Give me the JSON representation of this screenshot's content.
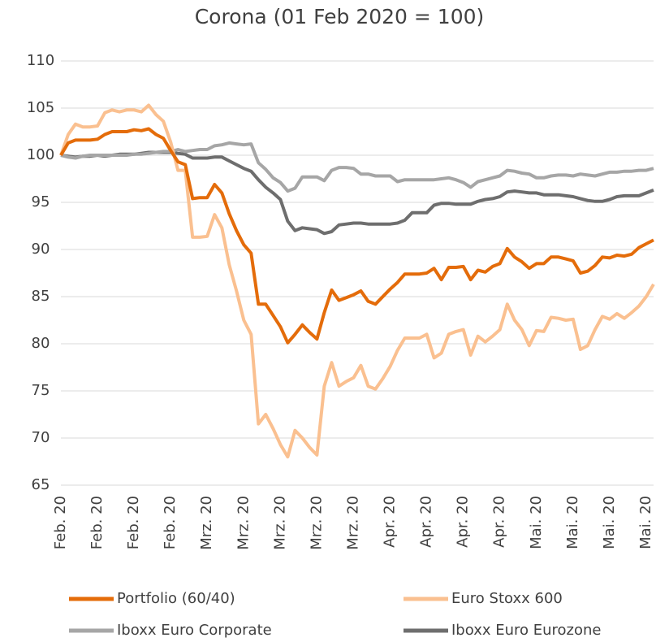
{
  "chart_data": {
    "type": "line",
    "title": "Corona (01 Feb 2020 = 100)",
    "categories": [
      "Feb. 20",
      null,
      null,
      null,
      null,
      "Feb. 20",
      null,
      null,
      null,
      null,
      "Feb. 20",
      null,
      null,
      null,
      null,
      "Feb. 20",
      null,
      null,
      null,
      null,
      "Mrz. 20",
      null,
      null,
      null,
      null,
      "Mrz. 20",
      null,
      null,
      null,
      null,
      "Mrz. 20",
      null,
      null,
      null,
      null,
      "Mrz. 20",
      null,
      null,
      null,
      null,
      "Mrz. 20",
      null,
      null,
      null,
      null,
      "Apr. 20",
      null,
      null,
      null,
      null,
      "Apr. 20",
      null,
      null,
      null,
      null,
      "Apr. 20",
      null,
      null,
      null,
      null,
      "Apr. 20",
      null,
      null,
      null,
      null,
      "Mai. 20",
      null,
      null,
      null,
      null,
      "Mai. 20",
      null,
      null,
      null,
      null,
      "Mai. 20",
      null,
      null,
      null,
      null,
      "Mai. 20",
      null
    ],
    "series": [
      {
        "name": "Portfolio (60/40)",
        "color": "#e46c0a",
        "values": [
          100,
          101.3,
          101.6,
          101.6,
          101.6,
          101.7,
          102.2,
          102.5,
          102.5,
          102.5,
          102.7,
          102.6,
          102.8,
          102.2,
          101.8,
          100.5,
          99.3,
          99,
          95.4,
          95.5,
          95.5,
          96.9,
          96,
          93.8,
          92,
          90.5,
          89.6,
          84.2,
          84.2,
          83,
          81.8,
          80.1,
          81,
          82,
          81.2,
          80.5,
          83.3,
          85.7,
          84.6,
          84.9,
          85.2,
          85.6,
          84.5,
          84.2,
          85,
          85.8,
          86.5,
          87.4,
          87.4,
          87.4,
          87.5,
          88,
          86.8,
          88.1,
          88.1,
          88.2,
          86.8,
          87.8,
          87.6,
          88.2,
          88.5,
          90.1,
          89.2,
          88.7,
          88,
          88.5,
          88.5,
          89.2,
          89.2,
          89,
          88.8,
          87.5,
          87.7,
          88.3,
          89.2,
          89.1,
          89.4,
          89.3,
          89.5,
          90.2,
          90.6,
          91
        ]
      },
      {
        "name": "Euro Stoxx 600",
        "color": "#fac090",
        "values": [
          100,
          102.2,
          103.3,
          103,
          103,
          103.1,
          104.5,
          104.8,
          104.6,
          104.8,
          104.8,
          104.6,
          105.3,
          104.3,
          103.6,
          101.4,
          98.4,
          98.4,
          91.3,
          91.3,
          91.4,
          93.7,
          92.3,
          88.4,
          85.6,
          82.5,
          81,
          71.5,
          72.5,
          71,
          69.3,
          68,
          70.8,
          70,
          69,
          68.2,
          75.5,
          78,
          75.5,
          76,
          76.4,
          77.7,
          75.5,
          75.2,
          76.3,
          77.6,
          79.3,
          80.6,
          80.6,
          80.6,
          81,
          78.5,
          79,
          81,
          81.3,
          81.5,
          78.8,
          80.8,
          80.2,
          80.8,
          81.5,
          84.2,
          82.5,
          81.5,
          79.8,
          81.4,
          81.3,
          82.8,
          82.7,
          82.5,
          82.6,
          79.4,
          79.8,
          81.5,
          82.9,
          82.6,
          83.2,
          82.7,
          83.3,
          84,
          85,
          86.3
        ]
      },
      {
        "name": "Iboxx Euro Corporate",
        "color": "#a6a6a6",
        "values": [
          100,
          99.8,
          99.7,
          99.9,
          100,
          100,
          100,
          100,
          100,
          100,
          100.1,
          100.1,
          100.2,
          100.3,
          100.4,
          100.4,
          100.6,
          100.4,
          100.5,
          100.6,
          100.6,
          101,
          101.1,
          101.3,
          101.2,
          101.1,
          101.2,
          99.2,
          98.5,
          97.6,
          97.1,
          96.2,
          96.5,
          97.7,
          97.7,
          97.7,
          97.3,
          98.4,
          98.7,
          98.7,
          98.6,
          98,
          98,
          97.8,
          97.8,
          97.8,
          97.2,
          97.4,
          97.4,
          97.4,
          97.4,
          97.4,
          97.5,
          97.6,
          97.4,
          97.1,
          96.6,
          97.2,
          97.4,
          97.6,
          97.8,
          98.4,
          98.3,
          98.1,
          98,
          97.6,
          97.6,
          97.8,
          97.9,
          97.9,
          97.8,
          98,
          97.9,
          97.8,
          98,
          98.2,
          98.2,
          98.3,
          98.3,
          98.4,
          98.4,
          98.6
        ]
      },
      {
        "name": "Iboxx Euro Eurozone",
        "color": "#6e6e6e",
        "values": [
          100,
          99.9,
          99.8,
          99.9,
          99.9,
          100,
          99.9,
          100,
          100.1,
          100.1,
          100.1,
          100.2,
          100.3,
          100.3,
          100.3,
          100.3,
          100.2,
          100.1,
          99.7,
          99.7,
          99.7,
          99.8,
          99.8,
          99.4,
          99,
          98.6,
          98.3,
          97.4,
          96.6,
          96,
          95.3,
          93,
          92,
          92.3,
          92.2,
          92.1,
          91.7,
          91.9,
          92.6,
          92.7,
          92.8,
          92.8,
          92.7,
          92.7,
          92.7,
          92.7,
          92.8,
          93.1,
          93.9,
          93.9,
          93.9,
          94.7,
          94.9,
          94.9,
          94.8,
          94.8,
          94.8,
          95.1,
          95.3,
          95.4,
          95.6,
          96.1,
          96.2,
          96.1,
          96,
          96,
          95.8,
          95.8,
          95.8,
          95.7,
          95.6,
          95.4,
          95.2,
          95.1,
          95.1,
          95.3,
          95.6,
          95.7,
          95.7,
          95.7,
          96,
          96.3
        ]
      }
    ],
    "ylim": [
      65,
      110
    ],
    "yticks": [
      65,
      70,
      75,
      80,
      85,
      90,
      95,
      100,
      105,
      110
    ],
    "grid": true
  }
}
